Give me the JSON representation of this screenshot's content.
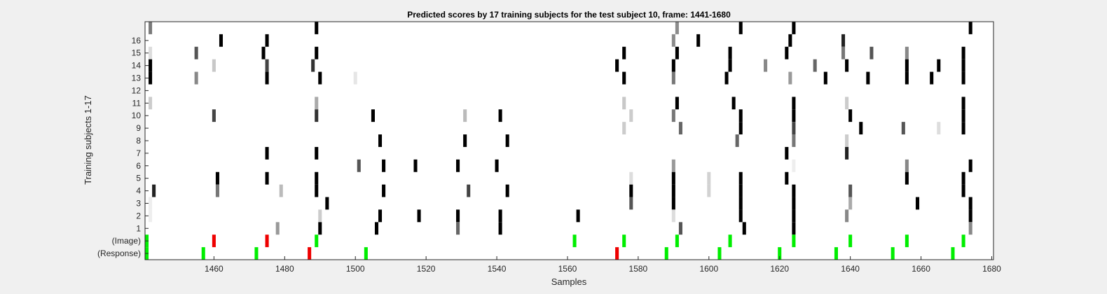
{
  "chart_data": {
    "type": "heatmap",
    "title": "Predicted scores by 17 training subjects for the test subject 10, frame: 1441-1680",
    "xlabel": "Samples",
    "ylabel": "Training subjects 1-17",
    "xlim": [
      1441,
      1680
    ],
    "x_ticks": [
      1460,
      1480,
      1500,
      1520,
      1540,
      1560,
      1580,
      1600,
      1620,
      1640,
      1660,
      1680
    ],
    "y_tick_labels": [
      "16",
      "15",
      "14",
      "13",
      "12",
      "11",
      "10",
      "9",
      "8",
      "7",
      "6",
      "5",
      "4",
      "3",
      "2",
      "1",
      "(Image)",
      "(Response)"
    ],
    "rows": [
      "17",
      "16",
      "15",
      "14",
      "13",
      "12",
      "11",
      "10",
      "9",
      "8",
      "7",
      "6",
      "5",
      "4",
      "3",
      "2",
      "1",
      "(Image)",
      "(Response)"
    ],
    "cells": [
      {
        "row": "17",
        "x": 1442,
        "color": "#7a7a7a"
      },
      {
        "row": "17",
        "x": 1489,
        "color": "#000000"
      },
      {
        "row": "17",
        "x": 1591,
        "color": "#8c8c8c"
      },
      {
        "row": "17",
        "x": 1609,
        "color": "#000000"
      },
      {
        "row": "17",
        "x": 1624,
        "color": "#000000"
      },
      {
        "row": "17",
        "x": 1674,
        "color": "#000000"
      },
      {
        "row": "16",
        "x": 1462,
        "color": "#000000"
      },
      {
        "row": "16",
        "x": 1475,
        "color": "#000000"
      },
      {
        "row": "16",
        "x": 1590,
        "color": "#8c8c8c"
      },
      {
        "row": "16",
        "x": 1597,
        "color": "#000000"
      },
      {
        "row": "16",
        "x": 1623,
        "color": "#000000"
      },
      {
        "row": "16",
        "x": 1638,
        "color": "#222222"
      },
      {
        "row": "15",
        "x": 1442,
        "color": "#dcdcdc"
      },
      {
        "row": "15",
        "x": 1455,
        "color": "#555555"
      },
      {
        "row": "15",
        "x": 1474,
        "color": "#000000"
      },
      {
        "row": "15",
        "x": 1489,
        "color": "#000000"
      },
      {
        "row": "15",
        "x": 1576,
        "color": "#000000"
      },
      {
        "row": "15",
        "x": 1591,
        "color": "#000000"
      },
      {
        "row": "15",
        "x": 1606,
        "color": "#000000"
      },
      {
        "row": "15",
        "x": 1622,
        "color": "#000000"
      },
      {
        "row": "15",
        "x": 1638,
        "color": "#777777"
      },
      {
        "row": "15",
        "x": 1646,
        "color": "#555555"
      },
      {
        "row": "15",
        "x": 1656,
        "color": "#888888"
      },
      {
        "row": "15",
        "x": 1672,
        "color": "#000000"
      },
      {
        "row": "14",
        "x": 1442,
        "color": "#000000"
      },
      {
        "row": "14",
        "x": 1460,
        "color": "#c8c8c8"
      },
      {
        "row": "14",
        "x": 1475,
        "color": "#444444"
      },
      {
        "row": "14",
        "x": 1488,
        "color": "#333333"
      },
      {
        "row": "14",
        "x": 1574,
        "color": "#000000"
      },
      {
        "row": "14",
        "x": 1590,
        "color": "#000000"
      },
      {
        "row": "14",
        "x": 1606,
        "color": "#000000"
      },
      {
        "row": "14",
        "x": 1616,
        "color": "#888888"
      },
      {
        "row": "14",
        "x": 1630,
        "color": "#666666"
      },
      {
        "row": "14",
        "x": 1639,
        "color": "#000000"
      },
      {
        "row": "14",
        "x": 1656,
        "color": "#000000"
      },
      {
        "row": "14",
        "x": 1665,
        "color": "#000000"
      },
      {
        "row": "14",
        "x": 1672,
        "color": "#000000"
      },
      {
        "row": "13",
        "x": 1442,
        "color": "#000000"
      },
      {
        "row": "13",
        "x": 1455,
        "color": "#888888"
      },
      {
        "row": "13",
        "x": 1475,
        "color": "#000000"
      },
      {
        "row": "13",
        "x": 1490,
        "color": "#000000"
      },
      {
        "row": "13",
        "x": 1500,
        "color": "#e6e6e6"
      },
      {
        "row": "13",
        "x": 1576,
        "color": "#000000"
      },
      {
        "row": "13",
        "x": 1590,
        "color": "#777777"
      },
      {
        "row": "13",
        "x": 1605,
        "color": "#000000"
      },
      {
        "row": "13",
        "x": 1623,
        "color": "#999999"
      },
      {
        "row": "13",
        "x": 1633,
        "color": "#000000"
      },
      {
        "row": "13",
        "x": 1645,
        "color": "#000000"
      },
      {
        "row": "13",
        "x": 1656,
        "color": "#000000"
      },
      {
        "row": "13",
        "x": 1663,
        "color": "#000000"
      },
      {
        "row": "13",
        "x": 1672,
        "color": "#000000"
      },
      {
        "row": "11",
        "x": 1442,
        "color": "#cccccc"
      },
      {
        "row": "11",
        "x": 1489,
        "color": "#aaaaaa"
      },
      {
        "row": "11",
        "x": 1576,
        "color": "#c8c8c8"
      },
      {
        "row": "11",
        "x": 1591,
        "color": "#000000"
      },
      {
        "row": "11",
        "x": 1607,
        "color": "#000000"
      },
      {
        "row": "11",
        "x": 1624,
        "color": "#000000"
      },
      {
        "row": "11",
        "x": 1639,
        "color": "#cccccc"
      },
      {
        "row": "11",
        "x": 1672,
        "color": "#000000"
      },
      {
        "row": "10",
        "x": 1460,
        "color": "#444444"
      },
      {
        "row": "10",
        "x": 1489,
        "color": "#333333"
      },
      {
        "row": "10",
        "x": 1505,
        "color": "#000000"
      },
      {
        "row": "10",
        "x": 1531,
        "color": "#bbbbbb"
      },
      {
        "row": "10",
        "x": 1541,
        "color": "#000000"
      },
      {
        "row": "10",
        "x": 1578,
        "color": "#cccccc"
      },
      {
        "row": "10",
        "x": 1590,
        "color": "#777777"
      },
      {
        "row": "10",
        "x": 1609,
        "color": "#000000"
      },
      {
        "row": "10",
        "x": 1624,
        "color": "#000000"
      },
      {
        "row": "10",
        "x": 1640,
        "color": "#000000"
      },
      {
        "row": "10",
        "x": 1672,
        "color": "#000000"
      },
      {
        "row": "9",
        "x": 1576,
        "color": "#cccccc"
      },
      {
        "row": "9",
        "x": 1592,
        "color": "#666666"
      },
      {
        "row": "9",
        "x": 1609,
        "color": "#000000"
      },
      {
        "row": "9",
        "x": 1624,
        "color": "#444444"
      },
      {
        "row": "9",
        "x": 1643,
        "color": "#000000"
      },
      {
        "row": "9",
        "x": 1655,
        "color": "#555555"
      },
      {
        "row": "9",
        "x": 1665,
        "color": "#dddddd"
      },
      {
        "row": "9",
        "x": 1672,
        "color": "#000000"
      },
      {
        "row": "8",
        "x": 1507,
        "color": "#000000"
      },
      {
        "row": "8",
        "x": 1531,
        "color": "#000000"
      },
      {
        "row": "8",
        "x": 1543,
        "color": "#000000"
      },
      {
        "row": "8",
        "x": 1608,
        "color": "#666666"
      },
      {
        "row": "8",
        "x": 1624,
        "color": "#777777"
      },
      {
        "row": "8",
        "x": 1639,
        "color": "#cccccc"
      },
      {
        "row": "7",
        "x": 1475,
        "color": "#000000"
      },
      {
        "row": "7",
        "x": 1489,
        "color": "#000000"
      },
      {
        "row": "7",
        "x": 1622,
        "color": "#000000"
      },
      {
        "row": "7",
        "x": 1639,
        "color": "#222222"
      },
      {
        "row": "6",
        "x": 1501,
        "color": "#555555"
      },
      {
        "row": "6",
        "x": 1508,
        "color": "#000000"
      },
      {
        "row": "6",
        "x": 1517,
        "color": "#000000"
      },
      {
        "row": "6",
        "x": 1529,
        "color": "#000000"
      },
      {
        "row": "6",
        "x": 1540,
        "color": "#000000"
      },
      {
        "row": "6",
        "x": 1590,
        "color": "#999999"
      },
      {
        "row": "6",
        "x": 1624,
        "color": "#eeeeee"
      },
      {
        "row": "6",
        "x": 1656,
        "color": "#888888"
      },
      {
        "row": "6",
        "x": 1674,
        "color": "#000000"
      },
      {
        "row": "5",
        "x": 1461,
        "color": "#000000"
      },
      {
        "row": "5",
        "x": 1475,
        "color": "#000000"
      },
      {
        "row": "5",
        "x": 1489,
        "color": "#000000"
      },
      {
        "row": "5",
        "x": 1578,
        "color": "#dddddd"
      },
      {
        "row": "5",
        "x": 1590,
        "color": "#000000"
      },
      {
        "row": "5",
        "x": 1600,
        "color": "#d2d2d2"
      },
      {
        "row": "5",
        "x": 1609,
        "color": "#000000"
      },
      {
        "row": "5",
        "x": 1622,
        "color": "#000000"
      },
      {
        "row": "5",
        "x": 1656,
        "color": "#000000"
      },
      {
        "row": "5",
        "x": 1672,
        "color": "#000000"
      },
      {
        "row": "4",
        "x": 1443,
        "color": "#222222"
      },
      {
        "row": "4",
        "x": 1461,
        "color": "#777777"
      },
      {
        "row": "4",
        "x": 1479,
        "color": "#bbbbbb"
      },
      {
        "row": "4",
        "x": 1489,
        "color": "#000000"
      },
      {
        "row": "4",
        "x": 1508,
        "color": "#000000"
      },
      {
        "row": "4",
        "x": 1532,
        "color": "#444444"
      },
      {
        "row": "4",
        "x": 1543,
        "color": "#000000"
      },
      {
        "row": "4",
        "x": 1578,
        "color": "#000000"
      },
      {
        "row": "4",
        "x": 1590,
        "color": "#000000"
      },
      {
        "row": "4",
        "x": 1600,
        "color": "#d2d2d2"
      },
      {
        "row": "4",
        "x": 1609,
        "color": "#000000"
      },
      {
        "row": "4",
        "x": 1624,
        "color": "#000000"
      },
      {
        "row": "4",
        "x": 1640,
        "color": "#555555"
      },
      {
        "row": "4",
        "x": 1672,
        "color": "#000000"
      },
      {
        "row": "3",
        "x": 1442,
        "color": "#eeeeee"
      },
      {
        "row": "3",
        "x": 1492,
        "color": "#000000"
      },
      {
        "row": "3",
        "x": 1578,
        "color": "#555555"
      },
      {
        "row": "3",
        "x": 1590,
        "color": "#000000"
      },
      {
        "row": "3",
        "x": 1609,
        "color": "#000000"
      },
      {
        "row": "3",
        "x": 1624,
        "color": "#000000"
      },
      {
        "row": "3",
        "x": 1640,
        "color": "#aaaaaa"
      },
      {
        "row": "3",
        "x": 1659,
        "color": "#000000"
      },
      {
        "row": "3",
        "x": 1674,
        "color": "#000000"
      },
      {
        "row": "2",
        "x": 1442,
        "color": "#eeeeee"
      },
      {
        "row": "2",
        "x": 1490,
        "color": "#cccccc"
      },
      {
        "row": "2",
        "x": 1507,
        "color": "#000000"
      },
      {
        "row": "2",
        "x": 1518,
        "color": "#000000"
      },
      {
        "row": "2",
        "x": 1529,
        "color": "#000000"
      },
      {
        "row": "2",
        "x": 1541,
        "color": "#000000"
      },
      {
        "row": "2",
        "x": 1563,
        "color": "#000000"
      },
      {
        "row": "2",
        "x": 1590,
        "color": "#dddddd"
      },
      {
        "row": "2",
        "x": 1609,
        "color": "#000000"
      },
      {
        "row": "2",
        "x": 1624,
        "color": "#000000"
      },
      {
        "row": "2",
        "x": 1639,
        "color": "#888888"
      },
      {
        "row": "2",
        "x": 1674,
        "color": "#000000"
      },
      {
        "row": "1",
        "x": 1478,
        "color": "#999999"
      },
      {
        "row": "1",
        "x": 1490,
        "color": "#000000"
      },
      {
        "row": "1",
        "x": 1506,
        "color": "#000000"
      },
      {
        "row": "1",
        "x": 1529,
        "color": "#666666"
      },
      {
        "row": "1",
        "x": 1541,
        "color": "#000000"
      },
      {
        "row": "1",
        "x": 1592,
        "color": "#555555"
      },
      {
        "row": "1",
        "x": 1610,
        "color": "#000000"
      },
      {
        "row": "1",
        "x": 1624,
        "color": "#000000"
      },
      {
        "row": "1",
        "x": 1674,
        "color": "#888888"
      },
      {
        "row": "(Image)",
        "x": 1441,
        "color": "#00ee00"
      },
      {
        "row": "(Image)",
        "x": 1460,
        "color": "#ee0000"
      },
      {
        "row": "(Image)",
        "x": 1475,
        "color": "#ee0000"
      },
      {
        "row": "(Image)",
        "x": 1489,
        "color": "#00ee00"
      },
      {
        "row": "(Image)",
        "x": 1562,
        "color": "#00ee00"
      },
      {
        "row": "(Image)",
        "x": 1576,
        "color": "#00ee00"
      },
      {
        "row": "(Image)",
        "x": 1591,
        "color": "#00ee00"
      },
      {
        "row": "(Image)",
        "x": 1606,
        "color": "#00ee00"
      },
      {
        "row": "(Image)",
        "x": 1624,
        "color": "#00ee00"
      },
      {
        "row": "(Image)",
        "x": 1640,
        "color": "#00ee00"
      },
      {
        "row": "(Image)",
        "x": 1656,
        "color": "#00ee00"
      },
      {
        "row": "(Image)",
        "x": 1672,
        "color": "#00ee00"
      },
      {
        "row": "(Response)",
        "x": 1441,
        "color": "#00ee00"
      },
      {
        "row": "(Response)",
        "x": 1457,
        "color": "#00ee00"
      },
      {
        "row": "(Response)",
        "x": 1472,
        "color": "#00ee00"
      },
      {
        "row": "(Response)",
        "x": 1487,
        "color": "#ee0000"
      },
      {
        "row": "(Response)",
        "x": 1503,
        "color": "#00ee00"
      },
      {
        "row": "(Response)",
        "x": 1574,
        "color": "#ee0000"
      },
      {
        "row": "(Response)",
        "x": 1588,
        "color": "#00ee00"
      },
      {
        "row": "(Response)",
        "x": 1603,
        "color": "#00ee00"
      },
      {
        "row": "(Response)",
        "x": 1620,
        "color": "#00ee00"
      },
      {
        "row": "(Response)",
        "x": 1636,
        "color": "#00ee00"
      },
      {
        "row": "(Response)",
        "x": 1652,
        "color": "#00ee00"
      },
      {
        "row": "(Response)",
        "x": 1669,
        "color": "#00ee00"
      }
    ]
  }
}
